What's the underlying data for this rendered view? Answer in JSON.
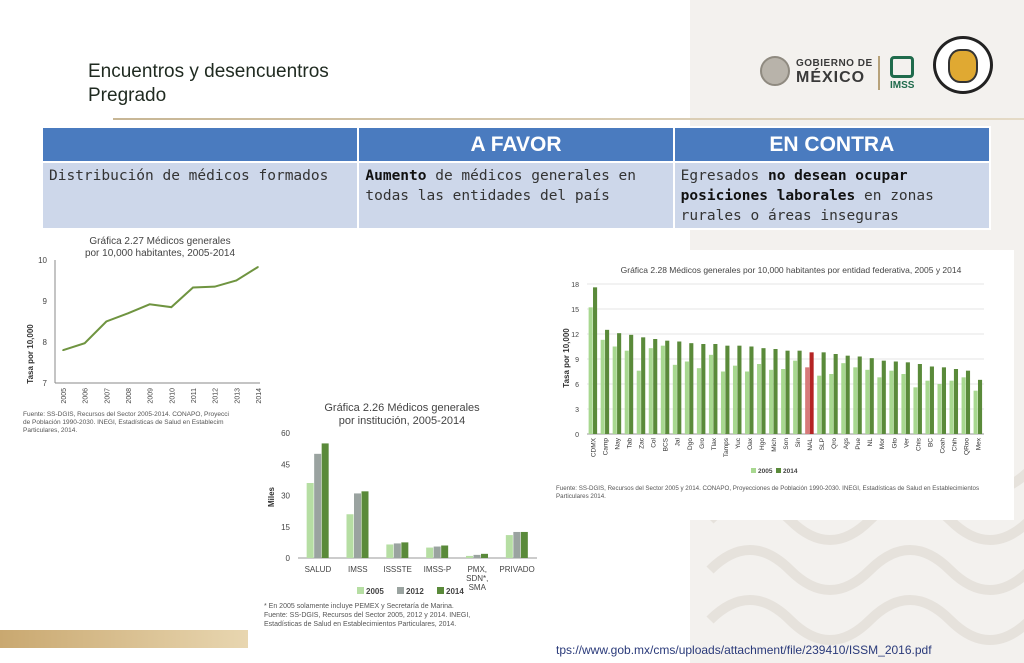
{
  "slide": {
    "title_line1": "Encuentros y desencuentros",
    "title_line2": "Pregrado",
    "url": "tps://www.gob.mx/cms/uploads/attachment/file/239410/ISSM_2016.pdf"
  },
  "logos": {
    "gob_line1": "GOBIERNO DE",
    "gob_line2": "MÉXICO",
    "imss": "IMSS"
  },
  "table": {
    "headers": [
      "",
      "A FAVOR",
      "EN CONTRA"
    ],
    "row": {
      "topic": "Distribución de médicos formados",
      "favor_bold": "Aumento",
      "favor_rest": " de médicos generales en todas las entidades del país",
      "contra_pre": "Egresados ",
      "contra_bold": "no desean ocupar posiciones laborales",
      "contra_rest": " en zonas rurales o áreas inseguras"
    }
  },
  "colors": {
    "header_blue": "#4a7bbf",
    "cell_blue": "#cdd7ea",
    "green_dark": "#5a8a3a",
    "green_light": "#9fd08a",
    "highlight_red": "#b52424"
  },
  "chart_data": [
    {
      "type": "line",
      "title": "Gráfica 2.27 Médicos generales por 10,000 habitantes, 2005-2014",
      "title_line1": "Gráfica 2.27 Médicos generales",
      "title_line2": "por 10,000 habitantes, 2005-2014",
      "ylabel": "Tasa por 10,000",
      "ylim": [
        7,
        10
      ],
      "yticks": [
        7,
        8,
        9,
        10
      ],
      "x": [
        "2005",
        "2006",
        "2007",
        "2008",
        "2009",
        "2010",
        "2011",
        "2012",
        "2013",
        "2014"
      ],
      "values": [
        7.8,
        7.97,
        8.5,
        8.7,
        8.92,
        8.85,
        9.33,
        9.35,
        9.5,
        9.83
      ],
      "source_line1": "Fuente: SS-DGIS, Recursos del Sector 2005-2014. CONAPO, Proyecci",
      "source_line2": "de Población 1990-2030. INEGI, Estadísticas de Salud en Establecim",
      "source_line3": "Particulares, 2014."
    },
    {
      "type": "bar",
      "title": "Gráfica 2.26 Médicos generales por institución, 2005-2014",
      "title_line1": "Gráfica 2.26 Médicos generales",
      "title_line2": "por institución, 2005-2014",
      "ylabel": "Miles",
      "ylim": [
        0,
        60
      ],
      "yticks": [
        0,
        15,
        30,
        45,
        60
      ],
      "categories": [
        "SALUD",
        "IMSS",
        "ISSSTE",
        "IMSS-P",
        "PMX, SDN*, SMA",
        "PRIVADO"
      ],
      "category_lines": [
        [
          "SALUD"
        ],
        [
          "IMSS"
        ],
        [
          "ISSSTE"
        ],
        [
          "IMSS-P"
        ],
        [
          "PMX,",
          "SDN*,",
          "SMA"
        ],
        [
          "PRIVADO"
        ]
      ],
      "series": [
        {
          "name": "2005",
          "color": "#b6dea3",
          "values": [
            36,
            21,
            6.5,
            5,
            1,
            11
          ]
        },
        {
          "name": "2012",
          "color": "#9aa3a0",
          "values": [
            50,
            31,
            7,
            5.5,
            1.5,
            12.5
          ]
        },
        {
          "name": "2014",
          "color": "#5a8a3a",
          "values": [
            55,
            32,
            7.5,
            6,
            2,
            12.5
          ]
        }
      ],
      "note_line1": "* En 2005 solamente incluye PEMEX y Secretaría de Marina.",
      "source_line1": "Fuente: SS-DGIS, Recursos del Sector 2005, 2012 y 2014. INEGI,",
      "source_line2": "Estadísticas de Salud en Establecimientos Particulares, 2014."
    },
    {
      "type": "bar",
      "title": "Gráfica 2.28 Médicos generales por 10,000 habitantes por entidad federativa, 2005 y 2014",
      "ylabel": "Tasa por 10,000",
      "ylim": [
        0,
        18
      ],
      "yticks": [
        0,
        3,
        6,
        9,
        12,
        15,
        18
      ],
      "categories": [
        "CDMX",
        "Camp",
        "Nay",
        "Tab",
        "Zac",
        "Col",
        "BCS",
        "Jal",
        "Dgo",
        "Gro",
        "Tlax",
        "Tamps",
        "Yuc",
        "Oax",
        "Hgo",
        "Mich",
        "Son",
        "Sin",
        "NAL",
        "SLP",
        "Qro",
        "Ags",
        "Pue",
        "NL",
        "Mor",
        "Gto",
        "Ver",
        "Chis",
        "BC",
        "Coah",
        "Chih",
        "QRoo",
        "Mex"
      ],
      "highlight": "NAL",
      "series": [
        {
          "name": "2005",
          "color": "#a8d890",
          "values": [
            15.2,
            11.3,
            10.5,
            10.0,
            7.6,
            10.3,
            10.6,
            8.3,
            8.7,
            7.9,
            9.5,
            7.5,
            8.2,
            7.5,
            8.4,
            7.7,
            7.8,
            8.8,
            8.0,
            7.0,
            7.2,
            8.5,
            8.0,
            7.7,
            6.8,
            7.6,
            7.2,
            5.6,
            6.4,
            6.0,
            6.4,
            6.8,
            5.2
          ],
          "_": null
        },
        {
          "name": "2014",
          "color": "#5a8a3a",
          "values": [
            17.6,
            12.5,
            12.1,
            11.9,
            11.6,
            11.4,
            11.2,
            11.1,
            10.9,
            10.8,
            10.8,
            10.6,
            10.6,
            10.5,
            10.3,
            10.2,
            10.0,
            10.0,
            9.8,
            9.8,
            9.6,
            9.4,
            9.3,
            9.1,
            8.8,
            8.7,
            8.6,
            8.4,
            8.1,
            8.0,
            7.8,
            7.6,
            6.5
          ]
        }
      ],
      "source_line1": "Fuente: SS-DGIS, Recursos del Sector 2005 y 2014. CONAPO, Proyecciones de Población 1990-2030. INEGI, Estadísticas de Salud en Establecimientos",
      "source_line2": "Particulares 2014."
    }
  ]
}
